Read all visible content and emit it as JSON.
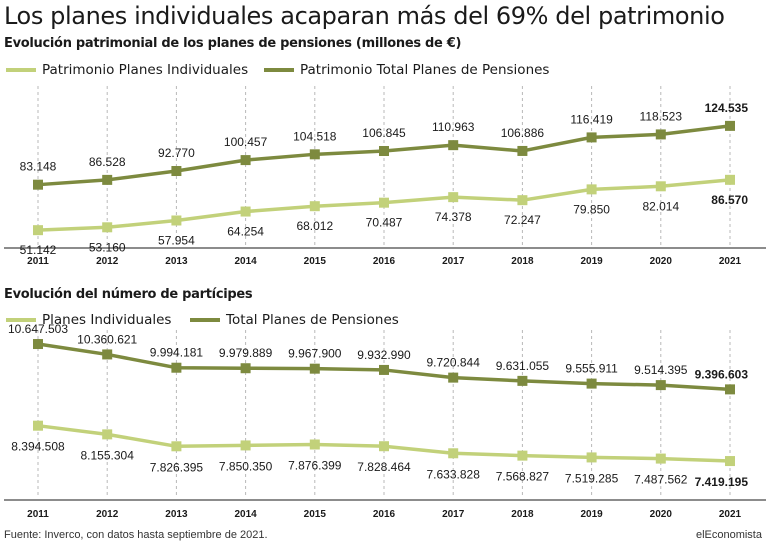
{
  "headline": "Los planes individuales acaparan más del 69% del patrimonio",
  "footer": {
    "source": "Fuente: Inverco, con datos hasta septiembre de 2021.",
    "brand": "elEconomista"
  },
  "colors": {
    "total": "#7d8a3f",
    "individual": "#c2d17a",
    "grid": "#b8b8b8",
    "text": "#1a1a1a"
  },
  "chart_data": [
    {
      "type": "line",
      "title": "Evolución patrimonial de los planes de pensiones (millones de €)",
      "xlabel": "",
      "ylabel": "",
      "grid": "vertical-dashed",
      "legend_position": "top-left",
      "ylim": [
        40000,
        135000
      ],
      "categories": [
        "2011",
        "2012",
        "2013",
        "2014",
        "2015",
        "2016",
        "2017",
        "2018",
        "2019",
        "2020",
        "2021"
      ],
      "series": [
        {
          "name": "Patrimonio Total Planes de Pensiones",
          "values": [
            83148,
            86528,
            92770,
            100457,
            104518,
            106845,
            110963,
            106886,
            116419,
            118523,
            124535
          ],
          "labels": [
            "83.148",
            "86.528",
            "92.770",
            "100.457",
            "104.518",
            "106.845",
            "110.963",
            "106.886",
            "116.419",
            "118.523",
            "124.535"
          ]
        },
        {
          "name": "Patrimonio Planes Individuales",
          "values": [
            51142,
            53160,
            57954,
            64254,
            68012,
            70487,
            74378,
            72247,
            79850,
            82014,
            86570
          ],
          "labels": [
            "51.142",
            "53.160",
            "57.954",
            "64.254",
            "68.012",
            "70.487",
            "74.378",
            "72.247",
            "79.850",
            "82.014",
            "86.570"
          ]
        }
      ]
    },
    {
      "type": "line",
      "title": "Evolución del número de partícipes",
      "xlabel": "",
      "ylabel": "",
      "grid": "vertical-dashed",
      "legend_position": "top-left",
      "ylim": [
        6400000,
        11200000
      ],
      "categories": [
        "2011",
        "2012",
        "2013",
        "2014",
        "2015",
        "2016",
        "2017",
        "2018",
        "2019",
        "2020",
        "2021"
      ],
      "series": [
        {
          "name": "Total Planes de Pensiones",
          "values": [
            10647503,
            10360621,
            9994181,
            9979889,
            9967900,
            9932990,
            9720844,
            9631055,
            9555911,
            9514395,
            9396603
          ],
          "labels": [
            "10.647.503",
            "10.360.621",
            "9.994.181",
            "9.979.889",
            "9.967.900",
            "9.932.990",
            "9.720.844",
            "9.631.055",
            "9.555.911",
            "9.514.395",
            "9.396.603"
          ]
        },
        {
          "name": "Planes Individuales",
          "values": [
            8394508,
            8155304,
            7826395,
            7850350,
            7876399,
            7828464,
            7633828,
            7568827,
            7519285,
            7487562,
            7419195
          ],
          "labels": [
            "8.394.508",
            "8.155.304",
            "7.826.395",
            "7.850.350",
            "7.876.399",
            "7.828.464",
            "7.633.828",
            "7.568.827",
            "7.519.285",
            "7.487.562",
            "7.419.195"
          ]
        }
      ]
    }
  ]
}
